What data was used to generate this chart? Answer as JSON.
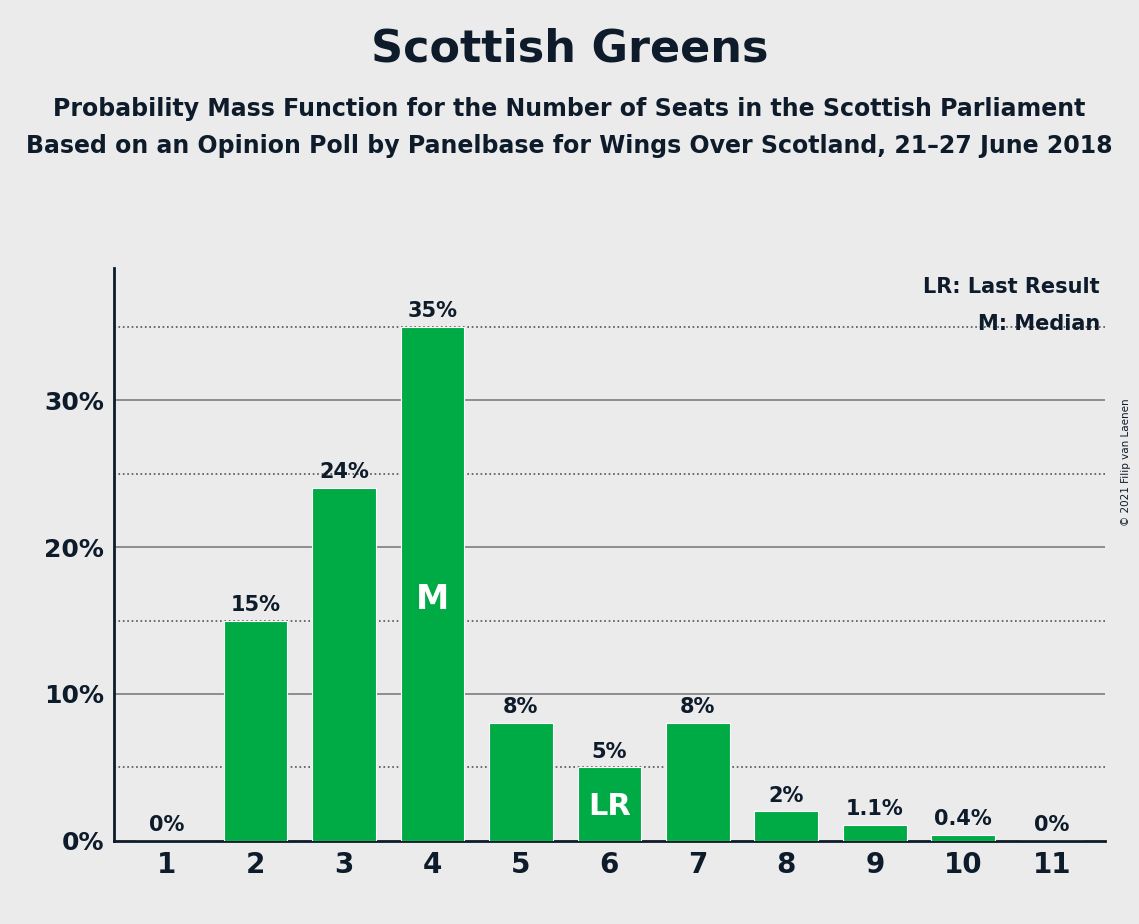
{
  "title": "Scottish Greens",
  "subtitle1": "Probability Mass Function for the Number of Seats in the Scottish Parliament",
  "subtitle2": "Based on an Opinion Poll by Panelbase for Wings Over Scotland, 21–27 June 2018",
  "copyright": "© 2021 Filip van Laenen",
  "categories": [
    1,
    2,
    3,
    4,
    5,
    6,
    7,
    8,
    9,
    10,
    11
  ],
  "values": [
    0.0,
    0.15,
    0.24,
    0.35,
    0.08,
    0.05,
    0.08,
    0.02,
    0.011,
    0.004,
    0.0
  ],
  "bar_labels": [
    "0%",
    "15%",
    "24%",
    "35%",
    "8%",
    "5%",
    "8%",
    "2%",
    "1.1%",
    "0.4%",
    "0%"
  ],
  "bar_color": "#00aa44",
  "median_bar_index": 3,
  "lr_bar_index": 5,
  "median_label": "M",
  "lr_label": "LR",
  "legend_lr": "LR: Last Result",
  "legend_m": "M: Median",
  "background_color": "#ebebeb",
  "grid_color": "#111111",
  "text_color": "#0d1b2a",
  "ytick_major": [
    0.0,
    0.1,
    0.2,
    0.3
  ],
  "ytick_major_labels": [
    "0%",
    "10%",
    "20%",
    "30%"
  ],
  "ytick_minor": [
    0.05,
    0.15,
    0.25,
    0.35
  ],
  "ylim": [
    0,
    0.39
  ],
  "title_fontsize": 32,
  "subtitle_fontsize": 17,
  "bar_label_fontsize": 15,
  "inner_label_fontsize": 22,
  "axis_label_fontsize": 18
}
